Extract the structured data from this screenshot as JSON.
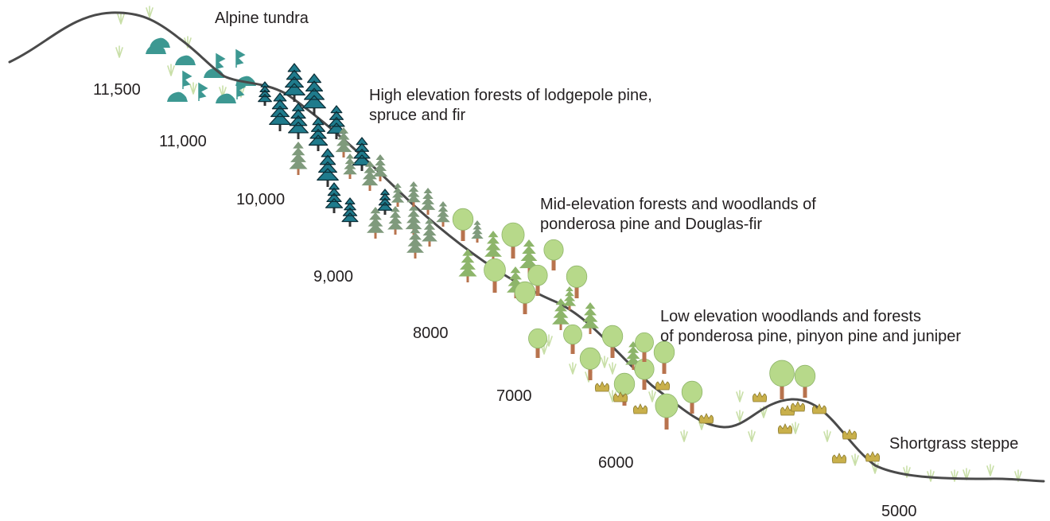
{
  "zones": {
    "alpine": "Alpine tundra",
    "high": [
      "High elevation forests of lodgepole pine,",
      "spruce and fir"
    ],
    "mid": [
      "Mid-elevation forests and woodlands of",
      "ponderosa pine and Douglas-fir"
    ],
    "low": [
      "Low elevation woodlands and forests",
      "of ponderosa pine, pinyon pine and juniper"
    ],
    "steppe": "Shortgrass steppe"
  },
  "elevations": [
    "11,500",
    "11,000",
    "10,000",
    "9,000",
    "8000",
    "7000",
    "6000",
    "5000"
  ],
  "colors": {
    "ground": "#4a4a4a",
    "spruce": "#1f7b8c",
    "spruce_outline": "#0d2f38",
    "lodgepole": "#7f9a7c",
    "douglas_fir": "#8db56a",
    "ponderosa": "#b7d98a",
    "trunk": "#b8734e",
    "tundra_plant": "#3d9892",
    "shrub": "#c9b04b",
    "grass": "#c9dfa8"
  }
}
